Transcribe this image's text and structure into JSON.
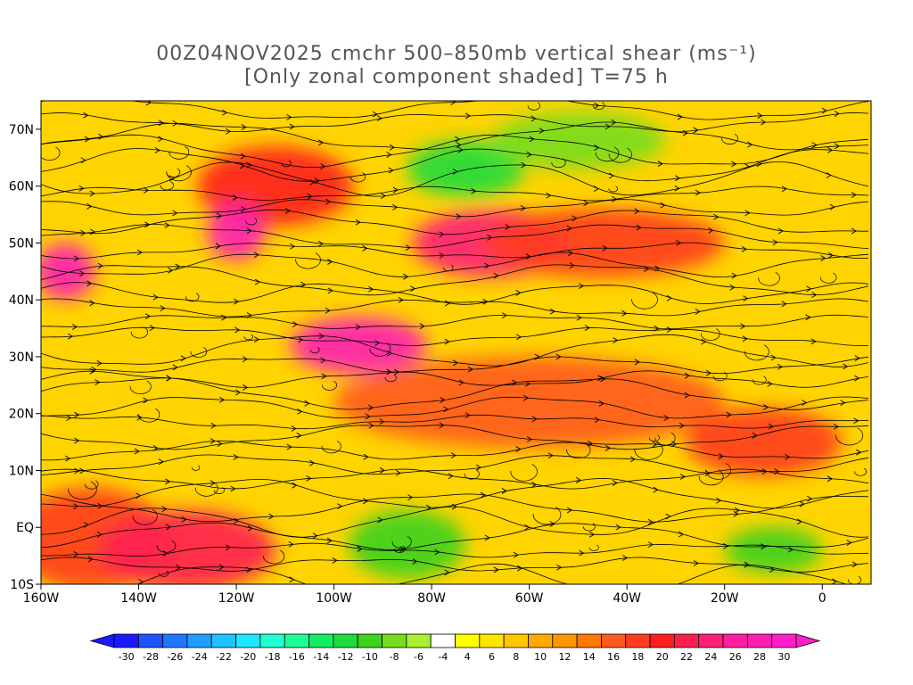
{
  "title_line1": "00Z04NOV2025 cmchr 500–850mb vertical shear (ms⁻¹)",
  "title_line2": "[Only zonal component shaded] T=75 h",
  "map": {
    "lon_labels": [
      "160W",
      "140W",
      "120W",
      "100W",
      "80W",
      "60W",
      "40W",
      "20W",
      "0"
    ],
    "lon_values": [
      -160,
      -140,
      -120,
      -100,
      -80,
      -60,
      -40,
      -20,
      0
    ],
    "lat_labels": [
      "70N",
      "60N",
      "50N",
      "40N",
      "30N",
      "20N",
      "10N",
      "EQ",
      "10S"
    ],
    "lat_values": [
      70,
      60,
      50,
      40,
      30,
      20,
      10,
      0,
      -10
    ],
    "lon_range": [
      -160,
      10
    ],
    "lat_range": [
      -10,
      75
    ]
  },
  "colorbar": {
    "labels": [
      "-30",
      "-28",
      "-26",
      "-24",
      "-22",
      "-20",
      "-18",
      "-16",
      "-14",
      "-12",
      "-10",
      "-8",
      "-6",
      "-4",
      "4",
      "6",
      "8",
      "10",
      "12",
      "14",
      "16",
      "18",
      "20",
      "22",
      "24",
      "26",
      "28",
      "30"
    ],
    "colors": [
      "#1a1aff",
      "#1e52ff",
      "#1e78ff",
      "#1e9eff",
      "#1ec4ff",
      "#1ee6ff",
      "#1effd2",
      "#1eff9a",
      "#14ec64",
      "#1edc3c",
      "#3cd21e",
      "#78dc1e",
      "#aaf032",
      "#ffffff",
      "#ffff00",
      "#ffe600",
      "#ffc800",
      "#ffaa00",
      "#ff9600",
      "#ff7800",
      "#ff5a1e",
      "#ff3c1e",
      "#ff1e1e",
      "#ff1e50",
      "#ff1e78",
      "#ff1ea0",
      "#ff1eb4",
      "#ff1ec8"
    ]
  },
  "shading_regions": [
    {
      "lon": -150,
      "lat": -2,
      "rx": 16,
      "ry": 9,
      "value": "18"
    },
    {
      "lon": -130,
      "lat": -4,
      "rx": 18,
      "ry": 7,
      "value": "22"
    },
    {
      "lon": -112,
      "lat": 60,
      "rx": 16,
      "ry": 7,
      "value": "20"
    },
    {
      "lon": -120,
      "lat": 52,
      "rx": 6,
      "ry": 5,
      "value": "28"
    },
    {
      "lon": -155,
      "lat": 45,
      "rx": 6,
      "ry": 5,
      "value": "28"
    },
    {
      "lon": -95,
      "lat": 32,
      "rx": 14,
      "ry": 5,
      "value": "28"
    },
    {
      "lon": -68,
      "lat": 50,
      "rx": 16,
      "ry": 6,
      "value": "24"
    },
    {
      "lon": -45,
      "lat": 50,
      "rx": 25,
      "ry": 6,
      "value": "18"
    },
    {
      "lon": -85,
      "lat": -3,
      "rx": 12,
      "ry": 6,
      "value": "-10"
    },
    {
      "lon": -73,
      "lat": 63,
      "rx": 12,
      "ry": 5,
      "value": "-12"
    },
    {
      "lon": -10,
      "lat": -4,
      "rx": 10,
      "ry": 4,
      "value": "-10"
    },
    {
      "lon": -50,
      "lat": 68,
      "rx": 18,
      "ry": 5,
      "value": "-8"
    },
    {
      "lon": -60,
      "lat": 22,
      "rx": 40,
      "ry": 8,
      "value": "16"
    },
    {
      "lon": -12,
      "lat": 15,
      "rx": 16,
      "ry": 6,
      "value": "18"
    }
  ]
}
